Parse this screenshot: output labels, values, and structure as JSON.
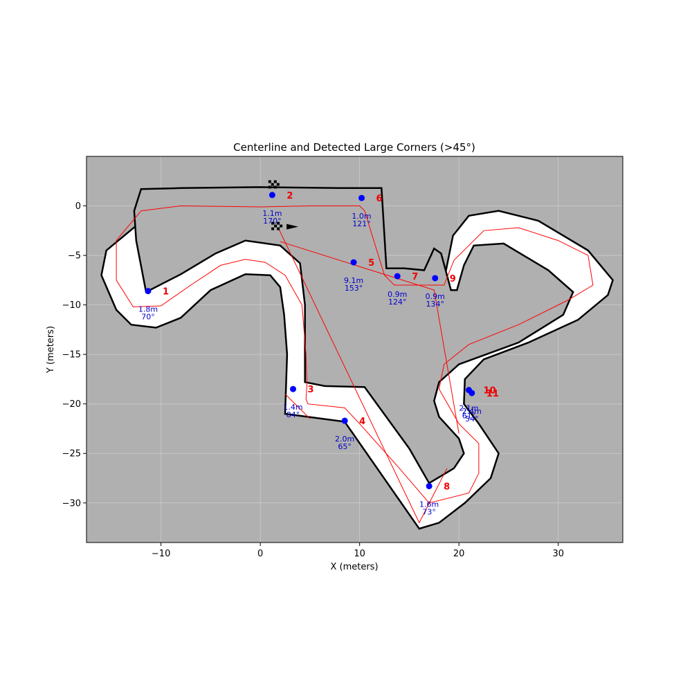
{
  "chart_data": {
    "type": "scatter",
    "title": "Centerline and Detected Large Corners (>45°)",
    "xlabel": "X (meters)",
    "ylabel": "Y (meters)",
    "xlim": [
      -17.5,
      36.5
    ],
    "ylim": [
      5.0,
      -34.0
    ],
    "y_axis_inverted": true,
    "xticks": [
      -10,
      0,
      10,
      20,
      30
    ],
    "xtick_labels": [
      "−10",
      "0",
      "10",
      "20",
      "30"
    ],
    "yticks": [
      -30,
      -25,
      -20,
      -15,
      -10,
      -5,
      0
    ],
    "ytick_labels": [
      "−30",
      "−25",
      "−20",
      "−15",
      "−10",
      "−5",
      "0"
    ],
    "grid": true,
    "colors": {
      "background": "#b0b0b0",
      "track_fill": "#ffffff",
      "track_edge": "#000000",
      "centerline": "#ff0000",
      "corner_point": "#0000ff",
      "corner_number": "#ee0000",
      "corner_annotation": "#0000cc",
      "grid": "#cccccc"
    },
    "centerline": {
      "name": "centerline",
      "x": [
        -8,
        -12,
        -14.5,
        -14.5,
        -12.8,
        -10,
        -7,
        -4,
        -1.5,
        0.5,
        2.5,
        4.2,
        4.6,
        4.7,
        4.6,
        4.8,
        8.5,
        10,
        14,
        17,
        21,
        22,
        22,
        20,
        18,
        18.5,
        21,
        26,
        31,
        33.5,
        33,
        30,
        26,
        22.5,
        19.5,
        18.5,
        17.5,
        13.5,
        12.5,
        10.5,
        10,
        5,
        0,
        -8
      ],
      "y": [
        0,
        -0.5,
        -3.5,
        -7.5,
        -10.2,
        -10.1,
        -8,
        -6,
        -5.4,
        -5.7,
        -7,
        -10,
        -15,
        -18,
        -19.5,
        -20,
        -20.4,
        -22,
        -26.5,
        -30,
        -29,
        -27,
        -24,
        -22,
        -18.5,
        -16,
        -14,
        -12,
        -9.5,
        -8,
        -5,
        -3.5,
        -2.2,
        -2.5,
        -5.5,
        -8,
        -8,
        -8,
        -7,
        -0.5,
        0,
        0,
        -0.1,
        0
      ]
    },
    "track": {
      "name": "track",
      "outer": {
        "x": [
          -8,
          -12.5,
          -15.5,
          -16,
          -14.5,
          -13,
          -10.5,
          -8,
          -5,
          -1.5,
          1,
          2,
          2.4,
          2.7,
          2.5,
          8.5,
          16,
          18,
          20.6,
          23.2,
          24,
          22,
          20.5,
          20.6,
          22.5,
          27,
          32,
          35,
          35.5,
          33,
          28,
          24,
          21,
          19.4,
          18.6,
          18.6,
          16.5,
          11.5,
          9.7,
          8.5,
          0,
          -8
        ],
        "y": [
          -1.6,
          -2,
          -4.5,
          -7,
          -10.5,
          -12,
          -12.3,
          -11.3,
          -8.5,
          -6.9,
          -7,
          -8.2,
          -11,
          -15,
          -21,
          -21.8,
          -32.6,
          -32,
          -30,
          -27.5,
          -25,
          -22,
          -20,
          -17.5,
          -15.5,
          -13.8,
          -11.5,
          -9,
          -7.5,
          -4.5,
          -1.5,
          -0.5,
          -1,
          -3,
          -7,
          -9.8,
          -9.8,
          -9.8,
          -5.5,
          -1.7,
          -1.7,
          -1.6
        ]
      },
      "inner": {
        "x": [
          -8,
          -12,
          -12.7,
          -12.5,
          -11.5,
          -8,
          -4.5,
          -1.5,
          2,
          4,
          4.5,
          4.5,
          6.5,
          10.5,
          15,
          17,
          19.5,
          20.5,
          20,
          18,
          17.5,
          18,
          20,
          26,
          30.5,
          31.5,
          29,
          24.5,
          21.5,
          20.5,
          19.8,
          19.2,
          18.2,
          17.5,
          16.5,
          14.5,
          12.7,
          12.2,
          8,
          0,
          -8
        ],
        "y": [
          1.8,
          1.7,
          -0.5,
          -3.5,
          -8.7,
          -6.9,
          -4.8,
          -3.5,
          -4,
          -5.8,
          -10,
          -17.8,
          -18.2,
          -18.3,
          -24.5,
          -28,
          -26.5,
          -25,
          -23.5,
          -21.3,
          -19.7,
          -17.8,
          -16,
          -13.8,
          -11,
          -8.7,
          -6.5,
          -3.8,
          -4,
          -6,
          -8.5,
          -8.5,
          -4.8,
          -4.3,
          -6.5,
          -6.3,
          -6.3,
          1.8,
          1.8,
          1.9,
          1.8
        ]
      }
    },
    "corner_chords": {
      "x": [
        1.8,
        16,
        18.8,
        20,
        17.5,
        10.5,
        2,
        1.8,
        2.5,
        5,
        7
      ],
      "y": [
        -2.2,
        -32,
        -26.5,
        -23,
        -8.5,
        -3,
        -3.6,
        -2.2,
        -19,
        -21.5,
        -20.5
      ]
    },
    "corners": [
      {
        "id": "1",
        "x": -11.3,
        "y": -8.6,
        "dist": "1.8m",
        "angle": "70°"
      },
      {
        "id": "2",
        "x": 1.2,
        "y": 1.1,
        "dist": "1.1m",
        "angle": "170°"
      },
      {
        "id": "3",
        "x": 3.3,
        "y": -18.5,
        "dist": "1.4m",
        "angle": "84°"
      },
      {
        "id": "4",
        "x": 8.5,
        "y": -21.7,
        "dist": "2.0m",
        "angle": "65°"
      },
      {
        "id": "5",
        "x": 9.4,
        "y": -5.7,
        "dist": "9.1m",
        "angle": "153°"
      },
      {
        "id": "6",
        "x": 10.2,
        "y": 0.8,
        "dist": "1.0m",
        "angle": "121°"
      },
      {
        "id": "7",
        "x": 13.8,
        "y": -7.1,
        "dist": "0.9m",
        "angle": "124°"
      },
      {
        "id": "8",
        "x": 17.0,
        "y": -28.3,
        "dist": "1.6m",
        "angle": "73°"
      },
      {
        "id": "9",
        "x": 17.6,
        "y": -7.3,
        "dist": "0.9m",
        "angle": "134°"
      },
      {
        "id": "10",
        "x": 21.0,
        "y": -18.6,
        "dist": "2.1m",
        "angle": "61°"
      },
      {
        "id": "11",
        "x": 21.3,
        "y": -18.9,
        "dist": "2.4m",
        "angle": "54°"
      }
    ],
    "start_markers": [
      {
        "x": 1.6,
        "y": -2.1,
        "direction": "right"
      },
      {
        "x": 1.3,
        "y": 2.1,
        "direction": "none"
      }
    ]
  }
}
